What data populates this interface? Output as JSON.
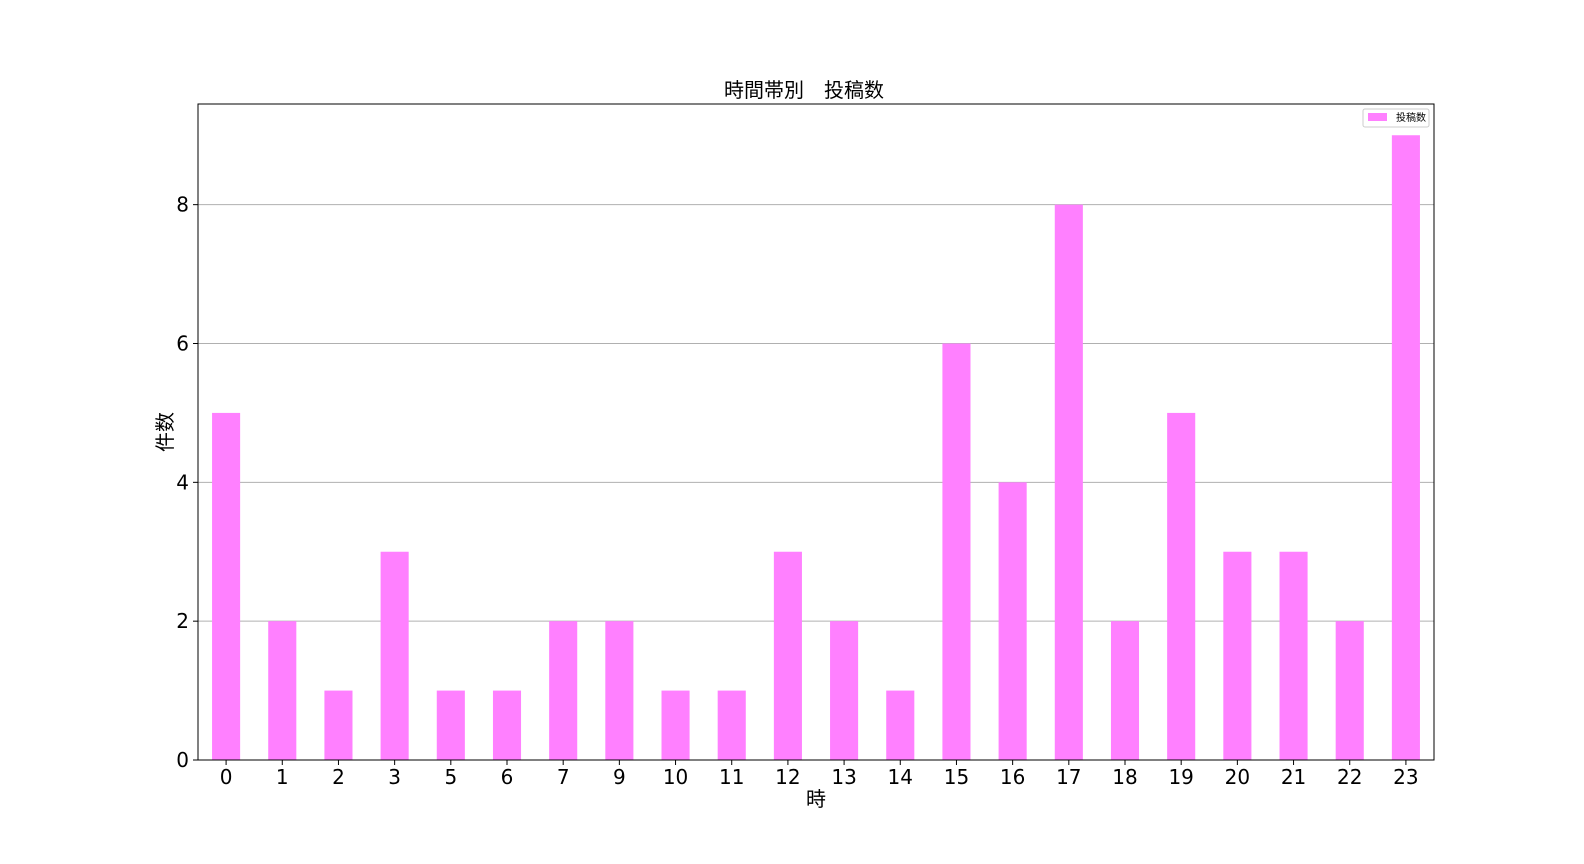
{
  "chart_data": {
    "type": "bar",
    "title": "時間帯別　投稿数",
    "xlabel": "時",
    "ylabel": "件数",
    "categories": [
      "0",
      "1",
      "2",
      "3",
      "5",
      "6",
      "7",
      "9",
      "10",
      "11",
      "12",
      "13",
      "14",
      "15",
      "16",
      "17",
      "18",
      "19",
      "20",
      "21",
      "22",
      "23"
    ],
    "series": [
      {
        "name": "投稿数",
        "color": "#ff80ff",
        "values": [
          5,
          2,
          1,
          3,
          1,
          1,
          2,
          2,
          1,
          1,
          3,
          2,
          1,
          6,
          4,
          8,
          2,
          5,
          3,
          3,
          2,
          9
        ]
      }
    ],
    "ylim": [
      0,
      9.45
    ],
    "yticks": [
      0,
      2,
      4,
      6,
      8
    ],
    "grid": "horizontal",
    "legend_position": "top-right"
  }
}
